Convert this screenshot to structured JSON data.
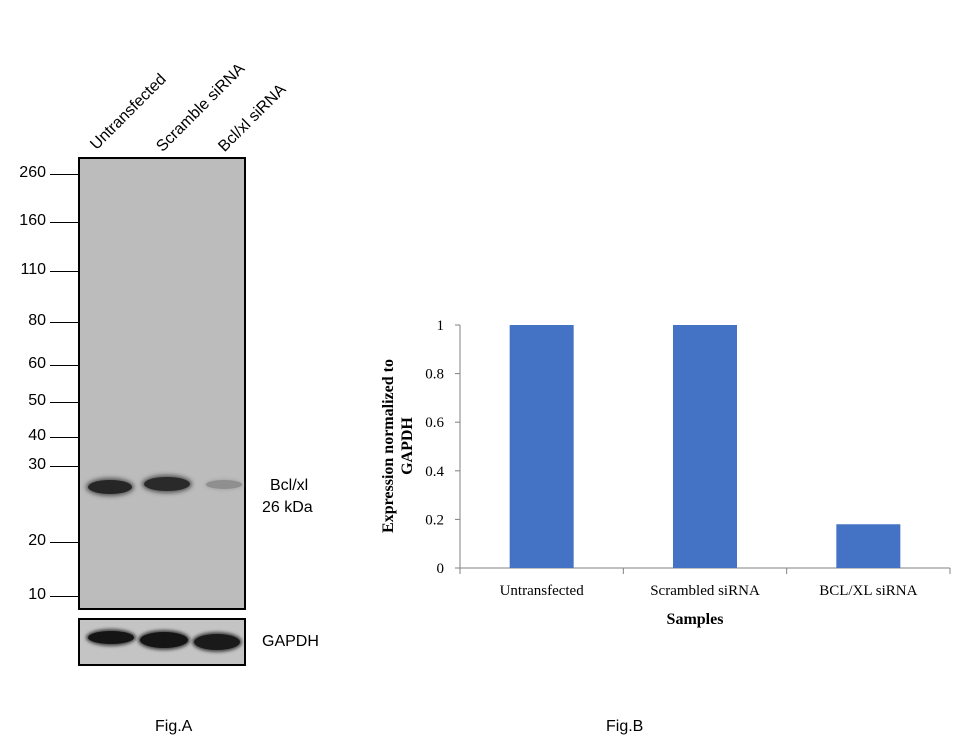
{
  "panel_a": {
    "lanes": [
      "Untransfected",
      "Scramble siRNA",
      "Bcl/xl siRNA"
    ],
    "markers": [
      "260",
      "160",
      "110",
      "80",
      "60",
      "50",
      "40",
      "30",
      "20",
      "10"
    ],
    "band_label_1": "Bcl/xl",
    "band_label_2": "26 kDa",
    "loading_label": "GAPDH",
    "caption": "Fig.A"
  },
  "panel_b": {
    "caption": "Fig.B"
  },
  "chart_data": {
    "type": "bar",
    "categories": [
      "Untransfected",
      "Scrambled siRNA",
      "BCL/XL siRNA"
    ],
    "values": [
      1.0,
      1.0,
      0.18
    ],
    "xlabel": "Samples",
    "ylabel": "Expression normalized to GAPDH",
    "ylim": [
      0,
      1
    ],
    "yticks": [
      "0",
      "0.2",
      "0.4",
      "0.6",
      "0.8",
      "1"
    ],
    "bar_color": "#4472c4",
    "grid": false
  }
}
